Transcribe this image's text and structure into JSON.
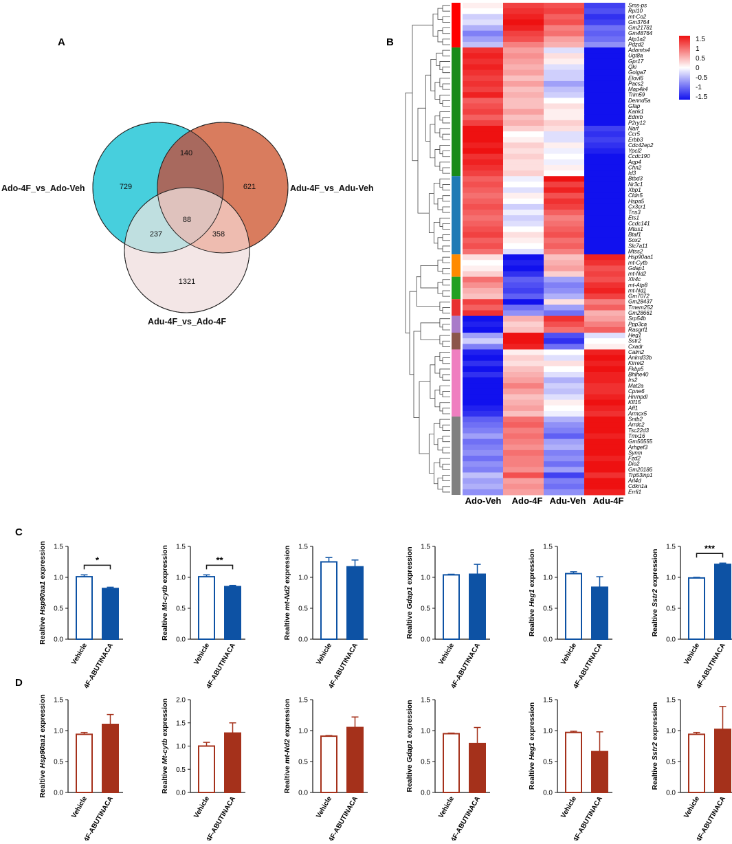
{
  "panels": {
    "A": "A",
    "B": "B",
    "C": "C",
    "D": "D"
  },
  "venn": {
    "set_labels": [
      "Ado-4F_vs_Ado-Veh",
      "Adu-4F_vs_Adu-Veh",
      "Adu-4F_vs_Ado-4F"
    ],
    "regions": {
      "only1": 729,
      "only2": 621,
      "only3": 1321,
      "s12": 140,
      "s13": 237,
      "s23": 358,
      "s123": 88
    },
    "colors": [
      "#47cfdd",
      "#d97c5e",
      "#f3e6e6"
    ]
  },
  "heatmap": {
    "columns": [
      "Ado-Veh",
      "Ado-4F",
      "Adu-Veh",
      "Adu-4F"
    ],
    "genes": [
      "Sms-ps",
      "Rpl10",
      "mt-Co2",
      "Gm3764",
      "Gm21781",
      "Gm48764",
      "Atp1a2",
      "Pdzd2",
      "Adamts4",
      "Ugt8a",
      "Gpr17",
      "Qki",
      "Golga7",
      "Elovl6",
      "Pacs2",
      "Map4k4",
      "Trim59",
      "Dennd5a",
      "Gfap",
      "Kank1",
      "Ednrb",
      "P2ry12",
      "Narf",
      "Ccr5",
      "Erbb3",
      "Cdc42ep2",
      "Ypcl2",
      "Ccdc190",
      "Aqp4",
      "Chn2",
      "Id3",
      "Btbd3",
      "Nr3c1",
      "Xbp1",
      "Cldn5",
      "Hspa5",
      "Cx3cr1",
      "Tns3",
      "Ets1",
      "Ccdc141",
      "Mtus1",
      "Btaf1",
      "Sox2",
      "Slc7a11",
      "Mtss2",
      "Hsp90aa1",
      "mt-Cytb",
      "Gdap1",
      "mt-Nd2",
      "Xlr4c",
      "mt-Atp8",
      "mt-Nd1",
      "Gm7072",
      "Gm28437",
      "Tmem252",
      "Gm28661",
      "Srp54b",
      "Ppp3ca",
      "Rasgrf1",
      "Heg1",
      "Sstr2",
      "Cxadr",
      "Calm2",
      "Ankrd33b",
      "Kirrel2",
      "Fkbp5",
      "Bhlhe40",
      "Irs2",
      "Mat2a",
      "Cpne6",
      "Hnrnpdl",
      "Klf15",
      "Aff1",
      "Armcx5",
      "Sntb2",
      "Arrdc2",
      "Tsc22d3",
      "Tmx16",
      "Gm56555",
      "Arhgef3",
      "Synm",
      "Fzd2",
      "Dio2",
      "Gm20186",
      "Trp53inp1",
      "Arl4d",
      "Cdkn1a",
      "Errfi1"
    ],
    "values": [
      [
        0.1,
        1.2,
        1.1,
        -1.2
      ],
      [
        0.0,
        1.3,
        1.2,
        -1.1
      ],
      [
        -0.3,
        1.4,
        1.0,
        -1.3
      ],
      [
        -0.2,
        1.5,
        1.1,
        -1.2
      ],
      [
        -0.5,
        1.4,
        0.8,
        -0.9
      ],
      [
        -0.8,
        1.2,
        0.9,
        -1.0
      ],
      [
        -0.6,
        1.1,
        0.6,
        -0.9
      ],
      [
        -0.4,
        0.8,
        0.5,
        -0.7
      ],
      [
        1.3,
        0.6,
        -0.2,
        -1.5
      ],
      [
        1.4,
        0.7,
        0.2,
        -1.5
      ],
      [
        1.3,
        0.6,
        0.1,
        -1.5
      ],
      [
        1.4,
        0.5,
        -0.2,
        -1.5
      ],
      [
        1.3,
        0.6,
        -0.3,
        -1.5
      ],
      [
        1.2,
        0.4,
        -0.3,
        -1.5
      ],
      [
        1.3,
        0.6,
        -0.6,
        -1.5
      ],
      [
        1.2,
        0.4,
        -0.4,
        -1.5
      ],
      [
        1.4,
        0.5,
        -0.3,
        -1.5
      ],
      [
        1.0,
        0.4,
        0.0,
        -1.5
      ],
      [
        1.1,
        0.4,
        0.2,
        -1.5
      ],
      [
        1.2,
        0.6,
        0.1,
        -1.5
      ],
      [
        1.0,
        0.4,
        0.1,
        -1.5
      ],
      [
        1.2,
        0.5,
        0.3,
        -1.5
      ],
      [
        1.5,
        0.3,
        0.2,
        -1.2
      ],
      [
        1.6,
        0.0,
        -0.2,
        -1.3
      ],
      [
        1.5,
        0.1,
        -0.2,
        -1.2
      ],
      [
        1.4,
        0.3,
        0.1,
        -1.3
      ],
      [
        1.5,
        0.2,
        -0.1,
        -1.4
      ],
      [
        1.3,
        0.3,
        0.0,
        -1.5
      ],
      [
        1.4,
        0.2,
        -0.1,
        -1.5
      ],
      [
        1.3,
        0.2,
        0.1,
        -1.5
      ],
      [
        1.2,
        0.3,
        0.0,
        -1.5
      ],
      [
        1.0,
        -0.1,
        1.5,
        -1.5
      ],
      [
        1.1,
        0.0,
        1.2,
        -1.5
      ],
      [
        1.0,
        -0.2,
        1.4,
        -1.5
      ],
      [
        0.9,
        0.1,
        1.1,
        -1.5
      ],
      [
        1.0,
        0.0,
        1.3,
        -1.5
      ],
      [
        1.1,
        -0.3,
        1.2,
        -1.5
      ],
      [
        1.0,
        -0.1,
        1.0,
        -1.5
      ],
      [
        0.9,
        -0.3,
        0.8,
        -1.5
      ],
      [
        1.0,
        -0.2,
        0.9,
        -1.5
      ],
      [
        1.1,
        0.0,
        1.0,
        -1.5
      ],
      [
        1.2,
        0.2,
        1.1,
        -1.5
      ],
      [
        1.0,
        0.1,
        0.9,
        -1.5
      ],
      [
        1.1,
        0.0,
        1.0,
        -1.5
      ],
      [
        0.9,
        -0.2,
        0.8,
        -1.5
      ],
      [
        0.2,
        -1.5,
        0.4,
        1.4
      ],
      [
        0.0,
        -1.4,
        0.5,
        1.3
      ],
      [
        0.1,
        -1.5,
        0.6,
        1.1
      ],
      [
        0.3,
        -1.3,
        0.3,
        1.2
      ],
      [
        0.9,
        -1.0,
        -0.6,
        1.1
      ],
      [
        0.7,
        -1.1,
        -0.8,
        1.3
      ],
      [
        0.5,
        -1.2,
        -0.7,
        1.4
      ],
      [
        0.4,
        -1.0,
        -0.5,
        1.2
      ],
      [
        1.2,
        -1.5,
        0.2,
        0.8
      ],
      [
        1.0,
        -0.9,
        -0.6,
        1.0
      ],
      [
        1.3,
        -0.7,
        -0.9,
        0.5
      ],
      [
        -1.5,
        0.5,
        1.3,
        0.6
      ],
      [
        -1.4,
        0.3,
        1.1,
        0.8
      ],
      [
        -1.5,
        0.4,
        0.9,
        1.0
      ],
      [
        -0.6,
        1.5,
        -1.1,
        -0.2
      ],
      [
        -0.3,
        1.6,
        -1.3,
        0.0
      ],
      [
        -0.8,
        1.4,
        -0.9,
        0.1
      ],
      [
        -1.4,
        0.1,
        0.0,
        1.4
      ],
      [
        -1.5,
        0.3,
        -0.2,
        1.5
      ],
      [
        -1.3,
        0.2,
        0.2,
        1.4
      ],
      [
        -1.5,
        0.4,
        0.0,
        1.5
      ],
      [
        -1.3,
        0.5,
        -0.2,
        1.4
      ],
      [
        -1.5,
        0.6,
        -0.5,
        1.4
      ],
      [
        -1.6,
        0.8,
        -0.3,
        1.3
      ],
      [
        -1.7,
        0.6,
        -0.4,
        1.3
      ],
      [
        -1.5,
        0.4,
        -0.2,
        1.4
      ],
      [
        -1.6,
        0.5,
        0.1,
        1.5
      ],
      [
        -1.4,
        0.6,
        0.0,
        1.4
      ],
      [
        -1.3,
        0.4,
        -0.1,
        1.3
      ],
      [
        -1.0,
        0.9,
        -0.5,
        1.5
      ],
      [
        -0.9,
        1.0,
        -0.7,
        1.5
      ],
      [
        -0.8,
        0.8,
        -0.8,
        1.5
      ],
      [
        -0.6,
        0.9,
        -1.0,
        1.4
      ],
      [
        -0.9,
        0.8,
        -0.6,
        1.5
      ],
      [
        -0.8,
        0.7,
        -0.5,
        1.6
      ],
      [
        -0.7,
        0.9,
        -0.8,
        1.5
      ],
      [
        -0.9,
        0.8,
        -0.7,
        1.4
      ],
      [
        -0.7,
        0.8,
        -0.9,
        1.5
      ],
      [
        -0.8,
        0.7,
        -0.6,
        1.5
      ],
      [
        -0.4,
        1.1,
        -1.2,
        1.3
      ],
      [
        -0.6,
        0.6,
        -0.8,
        1.5
      ],
      [
        -0.5,
        0.7,
        -0.9,
        1.5
      ],
      [
        -0.7,
        0.6,
        -0.7,
        1.4
      ]
    ],
    "cluster_colors": [
      "#ff0000",
      "#1a8a1a",
      "#1f7ab5",
      "#ff8a00",
      "#22a022",
      "#e83030",
      "#a87bc9",
      "#8c564b",
      "#ef7ec0",
      "#808080"
    ],
    "cluster_sizes": [
      8,
      23,
      14,
      4,
      4,
      3,
      3,
      3,
      12,
      14
    ],
    "legend_ticks": [
      "1.5",
      "1",
      "0.5",
      "0",
      "-0.5",
      "-1",
      "-1.5"
    ],
    "legend_range": [
      -1.5,
      1.5
    ]
  },
  "chart_data": {
    "type": "bar",
    "categories": [
      "Vehicle",
      "4F-ABUTINACA"
    ],
    "colors": {
      "row_C": "#0d52a4",
      "row_D": "#a5311b"
    },
    "rows": [
      {
        "row": "C",
        "plots": [
          {
            "gene": "Hsp90aa1",
            "prefix": "Realtive ",
            "suffix": " expression",
            "values": [
              1.01,
              0.82
            ],
            "errors": [
              0.03,
              0.02
            ],
            "ylim": [
              0,
              1.5
            ],
            "ticks": [
              "0.0",
              "0.5",
              "1.0",
              "1.5"
            ],
            "sig": "*"
          },
          {
            "gene": "Mt-cytb",
            "prefix": "Realtive ",
            "suffix": " expression",
            "values": [
              1.01,
              0.85
            ],
            "errors": [
              0.03,
              0.02
            ],
            "ylim": [
              0,
              1.5
            ],
            "ticks": [
              "0.0",
              "0.5",
              "1.0",
              "1.5"
            ],
            "sig": "**"
          },
          {
            "gene": "mt-Nd2",
            "prefix": "Realtive ",
            "suffix": " expression",
            "values": [
              1.25,
              1.17
            ],
            "errors": [
              0.07,
              0.11
            ],
            "ylim": [
              0,
              1.5
            ],
            "ticks": [
              "0.0",
              "0.5",
              "1.0",
              "1.5"
            ],
            "sig": ""
          },
          {
            "gene": "Gdap1",
            "prefix": "Realtive ",
            "suffix": " expression",
            "values": [
              1.04,
              1.05
            ],
            "errors": [
              0.01,
              0.16
            ],
            "ylim": [
              0,
              1.5
            ],
            "ticks": [
              "0.0",
              "0.5",
              "1.0",
              "1.5"
            ],
            "sig": ""
          },
          {
            "gene": "Heg1",
            "prefix": "Realtive ",
            "suffix": " expression",
            "values": [
              1.06,
              0.84
            ],
            "errors": [
              0.03,
              0.17
            ],
            "ylim": [
              0,
              1.5
            ],
            "ticks": [
              "0.0",
              "0.5",
              "1.0",
              "1.5"
            ],
            "sig": ""
          },
          {
            "gene": "Sstr2",
            "prefix": "Realtive ",
            "suffix": " expression",
            "values": [
              0.99,
              1.21
            ],
            "errors": [
              0.01,
              0.02
            ],
            "ylim": [
              0,
              1.5
            ],
            "ticks": [
              "0.0",
              "0.5",
              "1.0",
              "1.5"
            ],
            "sig": "***"
          }
        ]
      },
      {
        "row": "D",
        "plots": [
          {
            "gene": "Hsp90aa1",
            "prefix": "Realtive ",
            "suffix": " expression",
            "values": [
              0.94,
              1.1
            ],
            "errors": [
              0.03,
              0.16
            ],
            "ylim": [
              0,
              1.5
            ],
            "ticks": [
              "0.0",
              "0.5",
              "1.0",
              "1.5"
            ],
            "sig": ""
          },
          {
            "gene": "Mt-cytb",
            "prefix": "Realtive ",
            "suffix": " expression",
            "values": [
              1.0,
              1.28
            ],
            "errors": [
              0.08,
              0.22
            ],
            "ylim": [
              0,
              2.0
            ],
            "ticks": [
              "0.0",
              "0.5",
              "1.0",
              "1.5",
              "2.0"
            ],
            "sig": ""
          },
          {
            "gene": "mt-Nd2",
            "prefix": "Realtive ",
            "suffix": " expression",
            "values": [
              0.91,
              1.05
            ],
            "errors": [
              0.01,
              0.17
            ],
            "ylim": [
              0,
              1.5
            ],
            "ticks": [
              "0.0",
              "0.5",
              "1.0",
              "1.5"
            ],
            "sig": ""
          },
          {
            "gene": "Gdap1",
            "prefix": "Realtive ",
            "suffix": " expression",
            "values": [
              0.95,
              0.79
            ],
            "errors": [
              0.01,
              0.26
            ],
            "ylim": [
              0,
              1.5
            ],
            "ticks": [
              "0.0",
              "0.5",
              "1.0",
              "1.5"
            ],
            "sig": ""
          },
          {
            "gene": "Heg1",
            "prefix": "Realtive ",
            "suffix": " expression",
            "values": [
              0.97,
              0.66
            ],
            "errors": [
              0.02,
              0.32
            ],
            "ylim": [
              0,
              1.5
            ],
            "ticks": [
              "0.0",
              "0.5",
              "1.0",
              "1.5"
            ],
            "sig": ""
          },
          {
            "gene": "Sstr2",
            "prefix": "Realtive ",
            "suffix": " expression",
            "values": [
              0.94,
              1.02
            ],
            "errors": [
              0.03,
              0.37
            ],
            "ylim": [
              0,
              1.5
            ],
            "ticks": [
              "0.0",
              "0.5",
              "1.0",
              "1.5"
            ],
            "sig": ""
          }
        ]
      }
    ]
  }
}
